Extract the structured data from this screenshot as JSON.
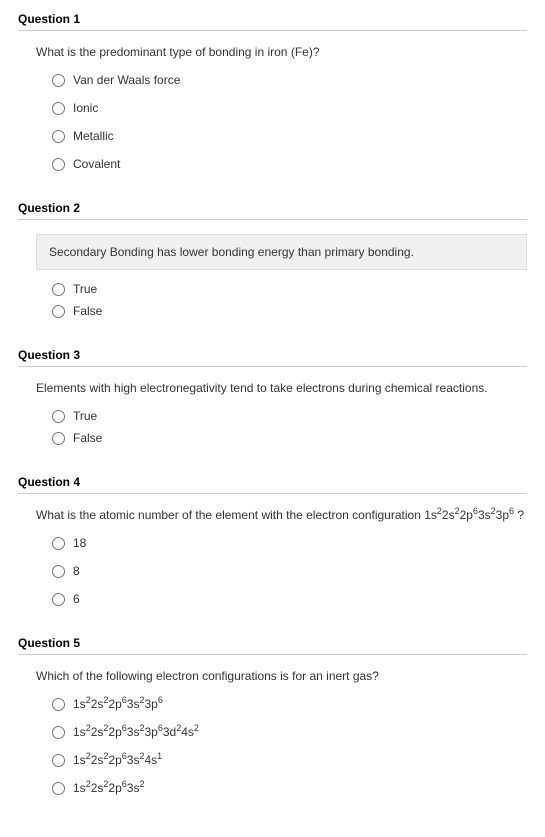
{
  "questions": [
    {
      "title": "Question 1",
      "prompt_html": "What is the predominant type of bonding in iron (Fe)?",
      "statement_html": null,
      "spaced": true,
      "options": [
        {
          "html": "Van der Waals force"
        },
        {
          "html": "Ionic"
        },
        {
          "html": "Metallic"
        },
        {
          "html": "Covalent"
        }
      ]
    },
    {
      "title": "Question 2",
      "prompt_html": null,
      "statement_html": "Secondary Bonding has lower bonding energy than primary bonding.",
      "spaced": false,
      "options": [
        {
          "html": "True"
        },
        {
          "html": "False"
        }
      ]
    },
    {
      "title": "Question 3",
      "prompt_html": "Elements with high electronegativity tend to take electrons during chemical reactions.",
      "statement_html": null,
      "spaced": false,
      "options": [
        {
          "html": "True"
        },
        {
          "html": "False"
        }
      ]
    },
    {
      "title": "Question 4",
      "prompt_html": "What is the atomic number of the element with the electron configuration 1s<sup>2</sup>2s<sup>2</sup>2p<sup>6</sup>3s<sup>2</sup>3p<sup>6</sup> ?",
      "statement_html": null,
      "spaced": true,
      "options": [
        {
          "html": "18"
        },
        {
          "html": "8"
        },
        {
          "html": "6"
        }
      ]
    },
    {
      "title": "Question 5",
      "prompt_html": "Which of the following electron configurations is for an inert gas?",
      "statement_html": null,
      "spaced": true,
      "options": [
        {
          "html": "1s<sup>2</sup>2s<sup>2</sup>2p<sup>6</sup>3s<sup>2</sup>3p<sup>6</sup>"
        },
        {
          "html": "1s<sup>2</sup>2s<sup>2</sup>2p<sup>6</sup>3s<sup>2</sup>3p<sup>6</sup>3d<sup>2</sup>4s<sup>2</sup>"
        },
        {
          "html": "1s<sup>2</sup>2s<sup>2</sup>2p<sup>6</sup>3s<sup>2</sup>4s<sup>1</sup>"
        },
        {
          "html": "1s<sup>2</sup>2s<sup>2</sup>2p<sup>6</sup>3s<sup>2</sup>"
        }
      ]
    }
  ]
}
